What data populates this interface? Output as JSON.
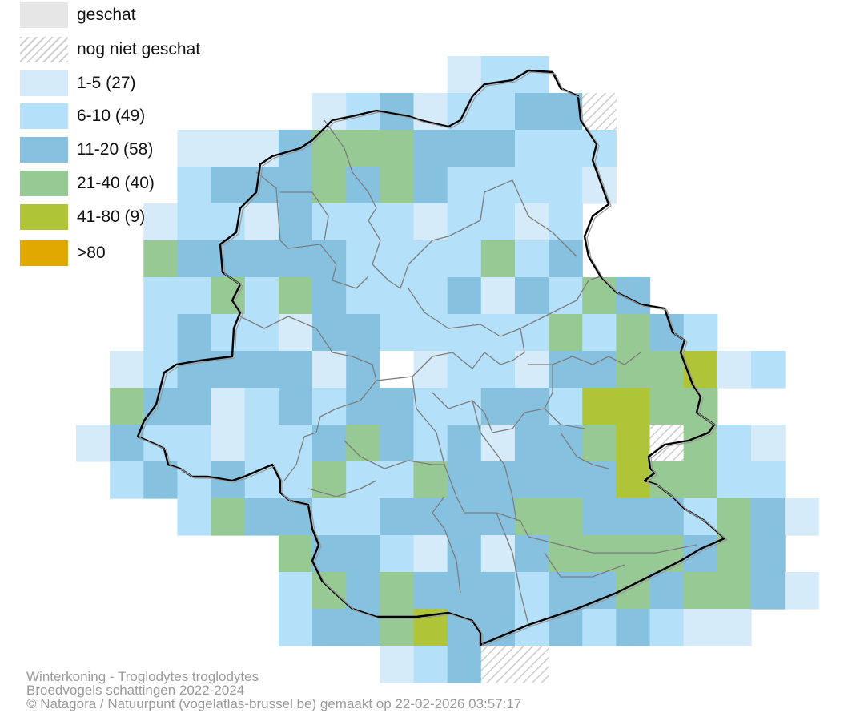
{
  "legend": [
    {
      "label": "geschat",
      "color": "#e6e6e6",
      "hatched": false
    },
    {
      "label": "nog niet geschat",
      "color": "#ffffff",
      "hatched": true
    },
    {
      "label": "1-5 (27)",
      "color": "#d6ebf9",
      "hatched": false
    },
    {
      "label": "6-10 (49)",
      "color": "#b5e0fa",
      "hatched": false
    },
    {
      "label": "11-20 (58)",
      "color": "#86c1e0",
      "hatched": false
    },
    {
      "label": "21-40 (40)",
      "color": "#97c994",
      "hatched": false
    },
    {
      "label": "41-80 (9)",
      "color": "#afc437",
      "hatched": false
    },
    {
      "label": ">80",
      "color": "#e0a800",
      "hatched": false
    }
  ],
  "map": {
    "category_codes": {
      "0": "white / no data",
      "1": "1-5",
      "2": "6-10",
      "3": "11-20",
      "4": "21-40",
      "5": "41-80",
      "N": "nog niet geschat"
    },
    "grid": [
      ".........................",
      "...........122...........",
      ".......12312233N.........",
      "...1113444333222.........",
      "...2333434322221.........",
      "..1221322212212..........",
      "..4333332222423..........",
      "..224243222313243........",
      "..23221332222242432......",
      ".12333313012213344512....",
      ".433123233223325544......",
      "13221223432313345N421....",
      ".23232242243333354422....",
      "...2433223333443332431...",
      "......433213134444343....",
      "......2434333233434431...",
      "......23345332323211.....",
      ".........123NN..........."
    ]
  },
  "caption": {
    "line1": "Winterkoning - Troglodytes troglodytes",
    "line2": "Broedvogels schattingen 2022-2024",
    "line3": "© Natagora / Natuurpunt (vogelatlas-brussel.be) gemaakt op 22-02-2026 03:57:17"
  }
}
